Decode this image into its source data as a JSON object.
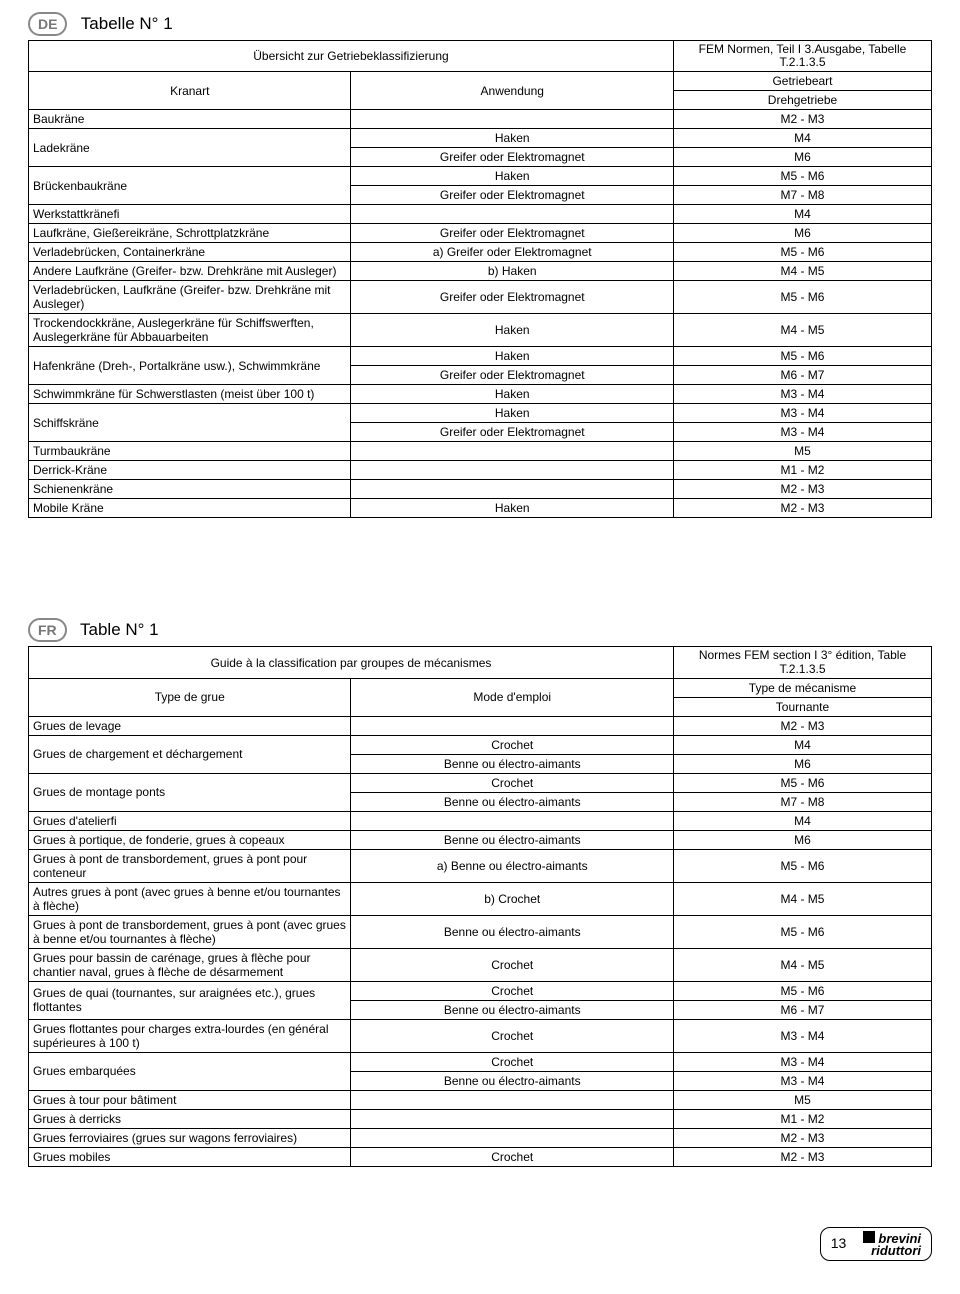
{
  "de": {
    "badge": "DE",
    "title": "Tabelle N° 1",
    "header_main": "Übersicht zur Getriebeklassifizierung",
    "header_norm": "FEM Normen, Teil I 3.Ausgabe, Tabelle T.2.1.3.5",
    "header_kranart": "Kranart",
    "header_anwendung": "Anwendung",
    "header_getriebeart": "Getriebeart",
    "header_dreh": "Drehgetriebe",
    "rows": [
      {
        "k": "Baukräne",
        "a": "",
        "r": "M2 - M3"
      },
      {
        "k": "Ladekräne",
        "rowspan": 2,
        "a": "Haken",
        "r": "M4"
      },
      {
        "a": "Greifer oder Elektromagnet",
        "r": "M6"
      },
      {
        "k": "Brückenbaukräne",
        "rowspan": 2,
        "a": "Haken",
        "r": "M5 - M6"
      },
      {
        "a": "Greifer oder Elektromagnet",
        "r": "M7 - M8"
      },
      {
        "k": "Werkstattkränefi",
        "a": "",
        "r": "M4"
      },
      {
        "k": "Laufkräne, Gießereikräne, Schrottplatzkräne",
        "a": "Greifer oder Elektromagnet",
        "r": "M6"
      },
      {
        "k": "Verladebrücken, Containerkräne",
        "a": "a) Greifer oder Elektromagnet",
        "r": "M5 - M6"
      },
      {
        "k": "Andere Laufkräne (Greifer- bzw. Drehkräne mit Ausleger)",
        "a": "b) Haken",
        "r": "M4 - M5"
      },
      {
        "k": "Verladebrücken, Laufkräne (Greifer- bzw. Drehkräne mit Ausleger)",
        "a": "Greifer oder Elektromagnet",
        "r": "M5 - M6"
      },
      {
        "k": "Trockendockkräne, Auslegerkräne für Schiffswerften, Auslegerkräne für Abbauarbeiten",
        "a": "Haken",
        "r": "M4 - M5"
      },
      {
        "k": "Hafenkräne (Dreh-, Portalkräne usw.), Schwimmkräne",
        "rowspan": 2,
        "a": "Haken",
        "r": "M5 - M6"
      },
      {
        "a": "Greifer oder Elektromagnet",
        "r": "M6 - M7"
      },
      {
        "k": "Schwimmkräne für Schwerstlasten (meist über 100 t)",
        "a": "Haken",
        "r": "M3 - M4"
      },
      {
        "k": "Schiffskräne",
        "rowspan": 2,
        "a": "Haken",
        "r": "M3 - M4"
      },
      {
        "a": "Greifer oder Elektromagnet",
        "r": "M3 - M4"
      },
      {
        "k": "Turmbaukräne",
        "a": "",
        "r": "M5"
      },
      {
        "k": "Derrick-Kräne",
        "a": "",
        "r": "M1 - M2"
      },
      {
        "k": "Schienenkräne",
        "a": "",
        "r": "M2 - M3"
      },
      {
        "k": "Mobile Kräne",
        "a": "Haken",
        "r": "M2 - M3"
      }
    ]
  },
  "fr": {
    "badge": "FR",
    "title": "Table N° 1",
    "header_main": "Guide à la classification par groupes de mécanismes",
    "header_norm": "Normes FEM section I 3° édition, Table T.2.1.3.5",
    "header_type": "Type de grue",
    "header_mode": "Mode d'emploi",
    "header_mech": "Type de mécanisme",
    "header_tour": "Tournante",
    "rows": [
      {
        "k": "Grues de levage",
        "a": "",
        "r": "M2 - M3"
      },
      {
        "k": "Grues de chargement et déchargement",
        "rowspan": 2,
        "a": "Crochet",
        "r": "M4"
      },
      {
        "a": "Benne ou électro-aimants",
        "r": "M6"
      },
      {
        "k": "Grues de montage ponts",
        "rowspan": 2,
        "a": "Crochet",
        "r": "M5 - M6"
      },
      {
        "a": "Benne ou électro-aimants",
        "r": "M7 - M8"
      },
      {
        "k": "Grues d'atelierfi",
        "a": "",
        "r": "M4"
      },
      {
        "k": "Grues à portique, de fonderie, grues à copeaux",
        "a": "Benne ou électro-aimants",
        "r": "M6"
      },
      {
        "k": "Grues à pont de transbordement, grues à pont pour conteneur",
        "a": "a) Benne ou électro-aimants",
        "r": "M5 - M6"
      },
      {
        "k": "Autres grues à pont (avec grues à benne et/ou tournantes à flèche)",
        "a": "b) Crochet",
        "r": "M4 - M5"
      },
      {
        "k": "Grues à pont de transbordement, grues à pont (avec grues à benne et/ou tournantes à flèche)",
        "a": "Benne ou électro-aimants",
        "r": "M5 - M6"
      },
      {
        "k": "Grues pour bassin de carénage, grues à flèche pour chantier naval, grues à flèche de désarmement",
        "a": "Crochet",
        "r": "M4 - M5"
      },
      {
        "k": "Grues de quai (tournantes, sur araignées etc.), grues flottantes",
        "rowspan": 2,
        "a": "Crochet",
        "r": "M5 - M6"
      },
      {
        "a": "Benne ou électro-aimants",
        "r": "M6 - M7"
      },
      {
        "k": "Grues flottantes pour charges extra-lourdes (en général supérieures à 100 t)",
        "a": "Crochet",
        "r": "M3 - M4"
      },
      {
        "k": "Grues embarquées",
        "rowspan": 2,
        "a": "Crochet",
        "r": "M3 - M4"
      },
      {
        "a": "Benne ou électro-aimants",
        "r": "M3 - M4"
      },
      {
        "k": "Grues à tour pour bâtiment",
        "a": "",
        "r": "M5"
      },
      {
        "k": "Grues à derricks",
        "a": "",
        "r": "M1 - M2"
      },
      {
        "k": "Grues ferroviaires (grues sur wagons ferroviaires)",
        "a": "",
        "r": "M2 - M3"
      },
      {
        "k": "Grues mobiles",
        "a": "Crochet",
        "r": "M2 - M3"
      }
    ]
  },
  "footer": {
    "page": "13",
    "brand_top": "brevini",
    "brand_bot": "riduttori"
  }
}
